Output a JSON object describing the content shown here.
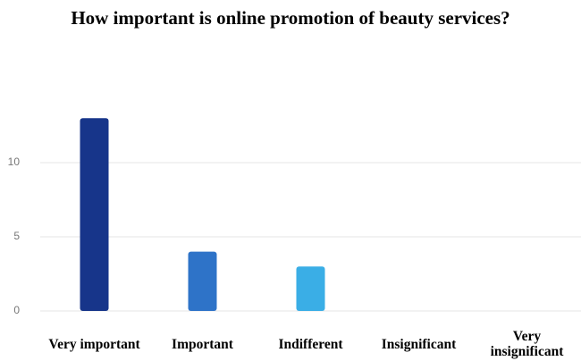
{
  "chart_data": {
    "type": "bar",
    "title": "How important is online promotion of beauty services?",
    "categories": [
      "Very important",
      "Important",
      "Indifferent",
      "Insignificant",
      "Very insignificant"
    ],
    "values": [
      13,
      4,
      3,
      0,
      0
    ],
    "colors": [
      "#17358a",
      "#2e73c8",
      "#3aaee6",
      "#3aaee6",
      "#3aaee6"
    ],
    "ylim": [
      0,
      15
    ],
    "yticks": [
      0,
      5,
      10
    ],
    "grid": true
  }
}
